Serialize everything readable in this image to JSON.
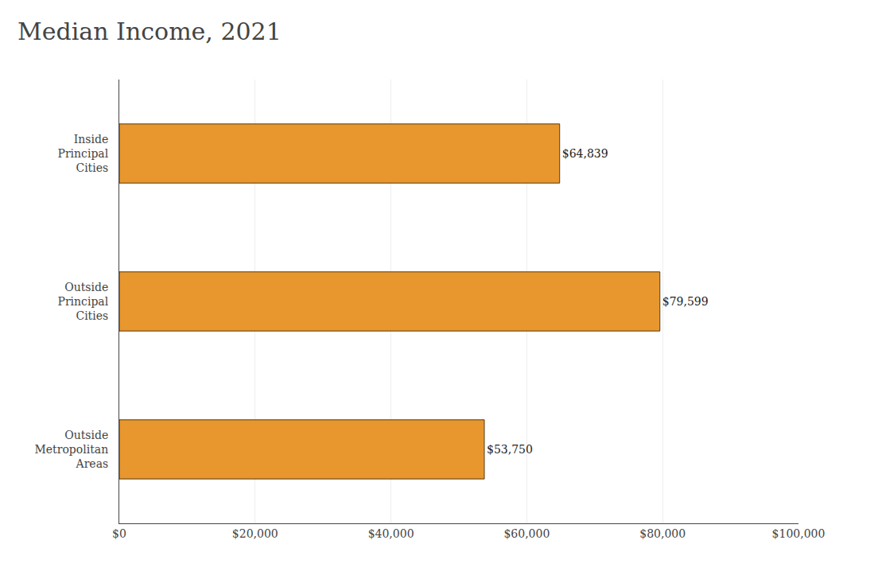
{
  "chart_data": {
    "type": "bar",
    "orientation": "horizontal",
    "title": "Median Income, 2021",
    "categories": [
      "Inside\nPrincipal\nCities",
      "Outside\nPrincipal\nCities",
      "Outside\nMetropolitan\nAreas"
    ],
    "values": [
      64839,
      79599,
      53750
    ],
    "value_labels": [
      "$64,839",
      "$79,599",
      "$53,750"
    ],
    "data_labels": true,
    "color": "#E8972E",
    "xlim": [
      0,
      100000
    ],
    "xticks": [
      {
        "value": 0,
        "label": "$0"
      },
      {
        "value": 20000,
        "label": "$20,000"
      },
      {
        "value": 40000,
        "label": "$40,000"
      },
      {
        "value": 60000,
        "label": "$60,000"
      },
      {
        "value": 80000,
        "label": "$80,000"
      },
      {
        "value": 100000,
        "label": "$100,000"
      }
    ],
    "grid": true
  }
}
